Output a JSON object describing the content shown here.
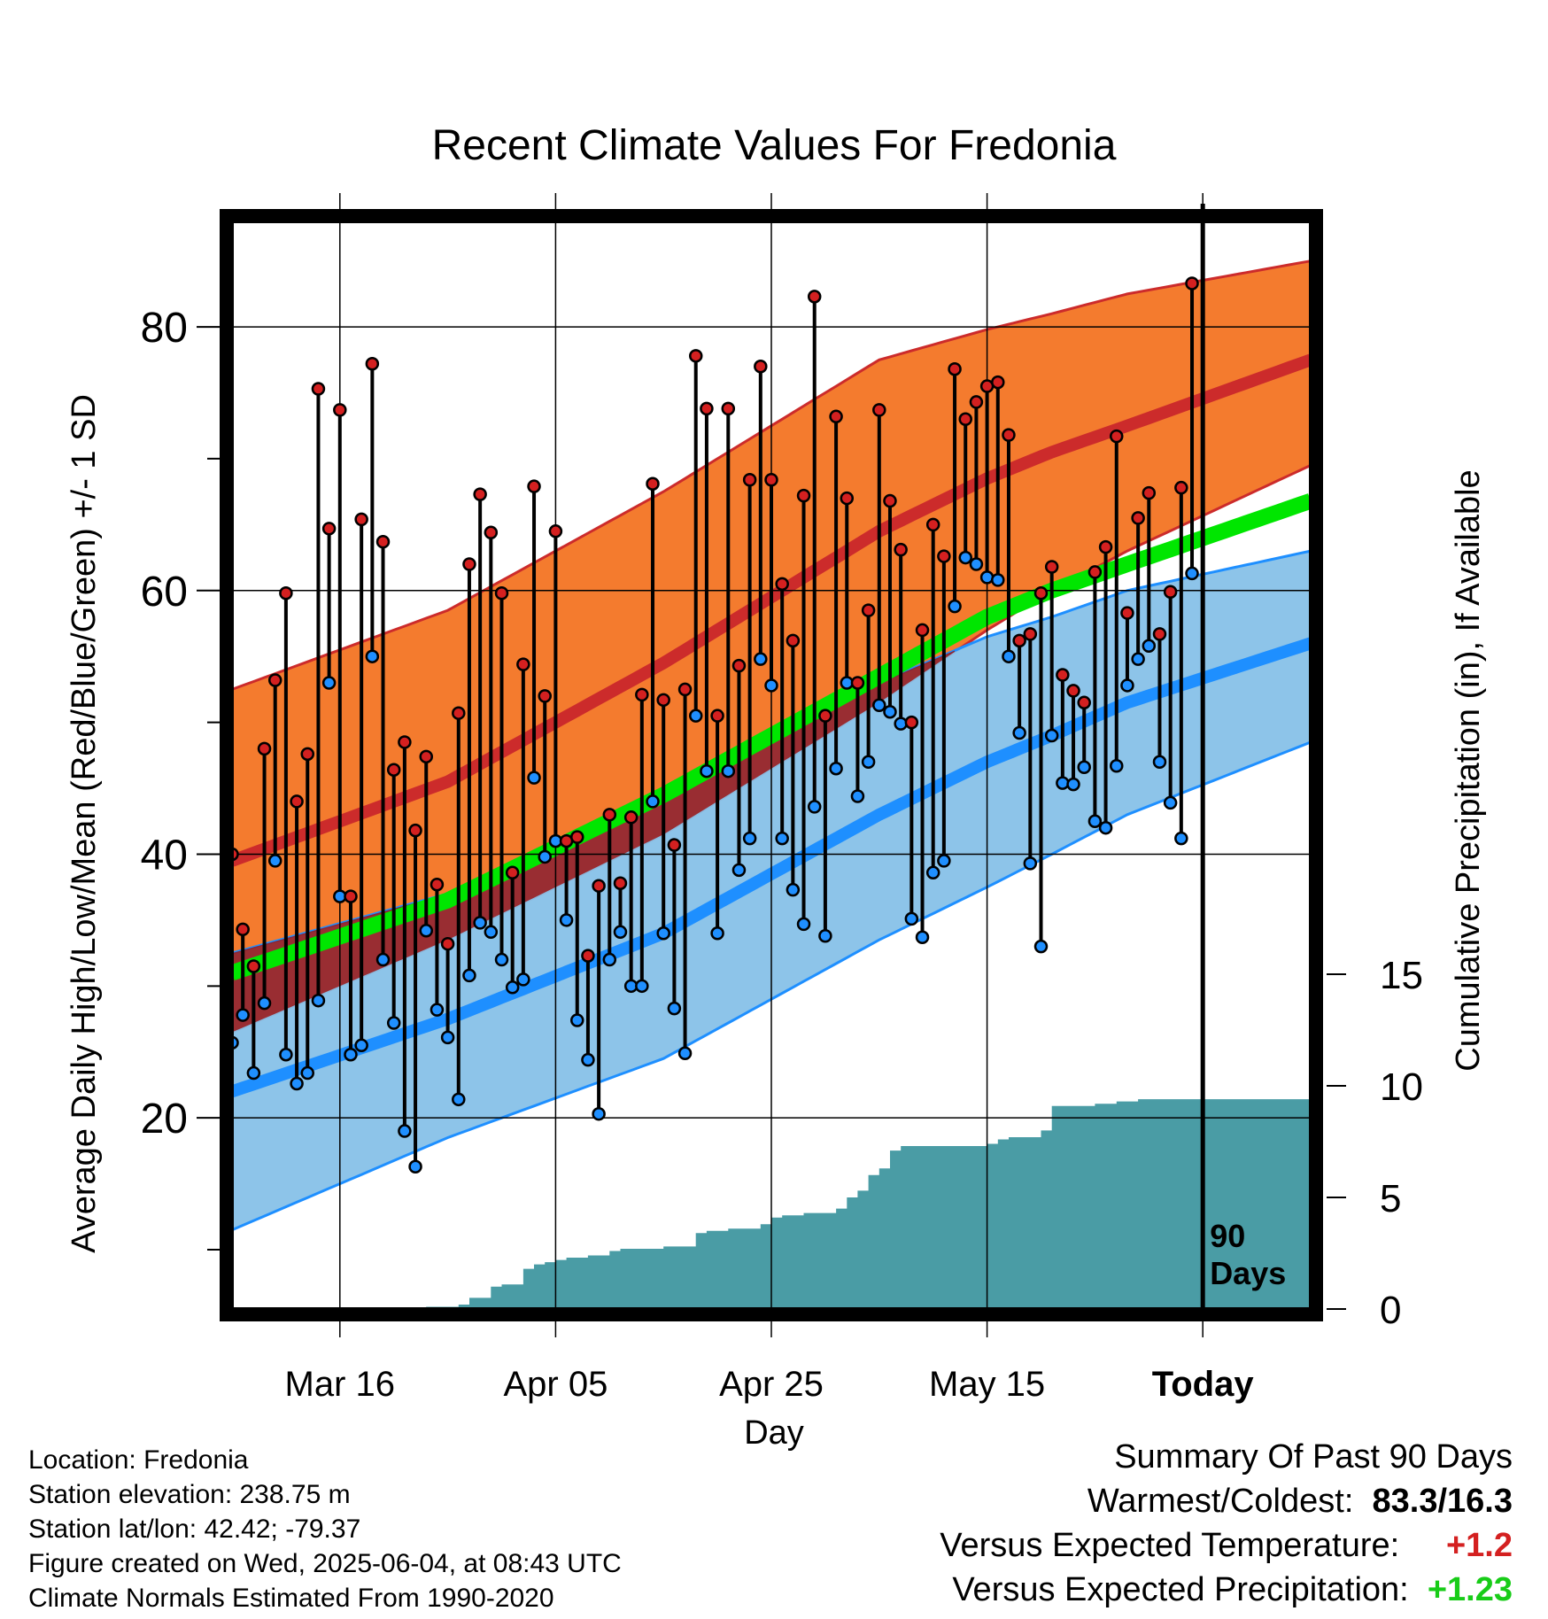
{
  "chart_data": {
    "type": "line",
    "title": "Recent Climate Values For Fredonia",
    "xlabel": "Day",
    "ylabel": "Average Daily High/Low/Mean (Red/Blue/Green) +/- 1 SD",
    "y2label": "Cumulative Precipitation (in), If Available",
    "x_tick_labels": [
      "Mar 16",
      "Apr 05",
      "Apr 25",
      "May 15",
      "Today"
    ],
    "x_tick_days": [
      10,
      30,
      50,
      70,
      90
    ],
    "xlim": [
      0,
      100
    ],
    "ylim": [
      5.5,
      88
    ],
    "y_ticks": [
      20,
      40,
      60,
      80
    ],
    "y2lim": [
      0,
      20
    ],
    "y2_ticks": [
      0,
      5,
      10,
      15
    ],
    "today_day": 90,
    "today_label_line1": "90",
    "today_label_line2": "Days",
    "colors": {
      "high_band": "#f47b2e",
      "high_mean": "#cc2b2b",
      "low_band": "#87c1e8",
      "low_mean": "#1e8fff",
      "mean_line": "#00e600",
      "overlap_band": "#9b1414",
      "precip": "#4a9ca5",
      "high_marker": "#d42020",
      "low_marker": "#1f8fff"
    },
    "normals": {
      "days": [
        0,
        20,
        40,
        60,
        70,
        76,
        83,
        100
      ],
      "high_mean": [
        39.5,
        45.5,
        54.5,
        64.5,
        68.5,
        70.5,
        72.5,
        77.5
      ],
      "high_upper": [
        52.5,
        58.5,
        67.5,
        77.5,
        79.8,
        81.0,
        82.5,
        85.0
      ],
      "high_lower": [
        26.5,
        33.5,
        41.5,
        51.5,
        57.0,
        60.0,
        63.0,
        69.5
      ],
      "low_mean": [
        22.0,
        27.5,
        34.0,
        43.0,
        47.0,
        49.0,
        51.5,
        56.0
      ],
      "low_upper": [
        32.5,
        37.0,
        44.0,
        53.0,
        56.5,
        58.0,
        60.0,
        63.0
      ],
      "low_lower": [
        11.5,
        18.5,
        24.5,
        33.5,
        37.5,
        40.0,
        43.0,
        48.5
      ],
      "mean_line": [
        31.0,
        36.5,
        44.5,
        53.5,
        58.0,
        60.0,
        62.0,
        66.8
      ]
    },
    "series": [
      {
        "name": "High",
        "values": [
          40.0,
          34.3,
          31.5,
          48.0,
          53.2,
          59.8,
          44.0,
          47.6,
          75.3,
          64.7,
          73.7,
          36.8,
          65.4,
          77.2,
          63.7,
          46.4,
          48.5,
          41.8,
          47.4,
          37.7,
          33.2,
          50.7,
          62.0,
          67.3,
          64.4,
          59.8,
          38.6,
          54.4,
          67.9,
          52.0,
          64.5,
          41.0,
          41.3,
          32.3,
          37.6,
          43.0,
          37.8,
          42.8,
          52.1,
          68.1,
          51.7,
          40.7,
          52.5,
          77.8,
          73.8,
          50.5,
          73.8,
          54.3,
          68.4,
          77.0,
          68.4,
          60.5,
          56.2,
          67.2,
          82.3,
          50.5,
          73.2,
          67.0,
          53.0,
          58.5,
          73.7,
          66.8,
          63.1,
          50.0,
          57.0,
          65.0,
          62.6,
          76.8,
          73.0,
          74.3,
          75.5,
          75.8,
          71.8,
          56.2,
          56.7,
          59.8,
          61.8,
          53.6,
          52.4,
          51.5,
          61.4,
          63.3,
          71.7,
          58.3,
          65.5,
          67.4,
          56.7,
          59.9,
          67.8,
          83.3
        ]
      },
      {
        "name": "Low",
        "values": [
          25.7,
          27.8,
          23.4,
          28.7,
          39.5,
          24.8,
          22.6,
          23.4,
          28.9,
          53.0,
          36.8,
          24.8,
          25.5,
          55.0,
          32.0,
          27.2,
          19.0,
          16.3,
          34.2,
          28.2,
          26.1,
          21.4,
          30.8,
          34.8,
          34.1,
          32.0,
          29.9,
          30.5,
          45.8,
          39.8,
          41.0,
          35.0,
          27.4,
          24.4,
          20.3,
          32.0,
          34.1,
          30.0,
          30.0,
          44.0,
          34.0,
          28.3,
          24.9,
          50.5,
          46.3,
          34.0,
          46.3,
          38.8,
          41.2,
          54.8,
          52.8,
          41.2,
          37.3,
          34.7,
          43.6,
          33.8,
          46.5,
          53.0,
          44.4,
          47.0,
          51.3,
          50.8,
          49.9,
          35.1,
          33.7,
          38.6,
          39.5,
          58.8,
          62.5,
          62.0,
          61.0,
          60.8,
          55.0,
          49.2,
          39.3,
          33.0,
          49.0,
          45.4,
          45.3,
          46.6,
          42.5,
          42.0,
          46.7,
          52.8,
          54.8,
          55.8,
          47.0,
          43.9,
          41.2,
          61.3
        ]
      }
    ],
    "precipitation": {
      "name": "Cumulative Precipitation",
      "days": [
        0,
        17,
        18,
        21,
        22,
        24,
        25,
        27,
        28,
        29,
        30,
        31,
        33,
        35,
        36,
        38,
        40,
        43,
        44,
        46,
        49,
        50,
        51,
        53,
        56,
        57,
        58,
        59,
        60,
        61,
        62,
        65,
        66,
        67,
        69,
        70,
        71,
        72,
        73,
        74,
        75,
        76,
        77,
        78,
        79,
        80,
        81,
        82,
        83,
        84,
        85,
        86,
        87,
        88,
        89,
        90,
        100
      ],
      "values": [
        0,
        0,
        0.1,
        0.2,
        0.5,
        1.0,
        1.1,
        1.8,
        2.0,
        2.1,
        2.2,
        2.3,
        2.4,
        2.6,
        2.7,
        2.7,
        2.8,
        3.4,
        3.5,
        3.6,
        3.8,
        4.1,
        4.2,
        4.3,
        4.5,
        5.0,
        5.3,
        6.0,
        6.3,
        7.1,
        7.3,
        7.3,
        7.3,
        7.3,
        7.3,
        7.4,
        7.6,
        7.7,
        7.7,
        7.7,
        8.0,
        9.1,
        9.1,
        9.1,
        9.1,
        9.2,
        9.2,
        9.3,
        9.3,
        9.4,
        9.4,
        9.4,
        9.4,
        9.4,
        9.4,
        9.4,
        9.4
      ]
    }
  },
  "info": {
    "location": "Location: Fredonia",
    "elevation": "Station elevation: 238.75 m",
    "latlon": "Station lat/lon: 42.42; -79.37",
    "created": "Figure created on Wed, 2025-06-04, at 08:43 UTC",
    "normals": "Climate Normals Estimated From 1990-2020"
  },
  "summary": {
    "title": "Summary Of Past 90 Days",
    "extremes_label": "Warmest/Coldest:",
    "extremes_value": "83.3/16.3",
    "temp_label": "Versus Expected Temperature:",
    "temp_value": "+1.2",
    "temp_color": "#d42020",
    "precip_label": "Versus Expected Precipitation:",
    "precip_value": "+1.23",
    "precip_color": "#18cc18"
  }
}
